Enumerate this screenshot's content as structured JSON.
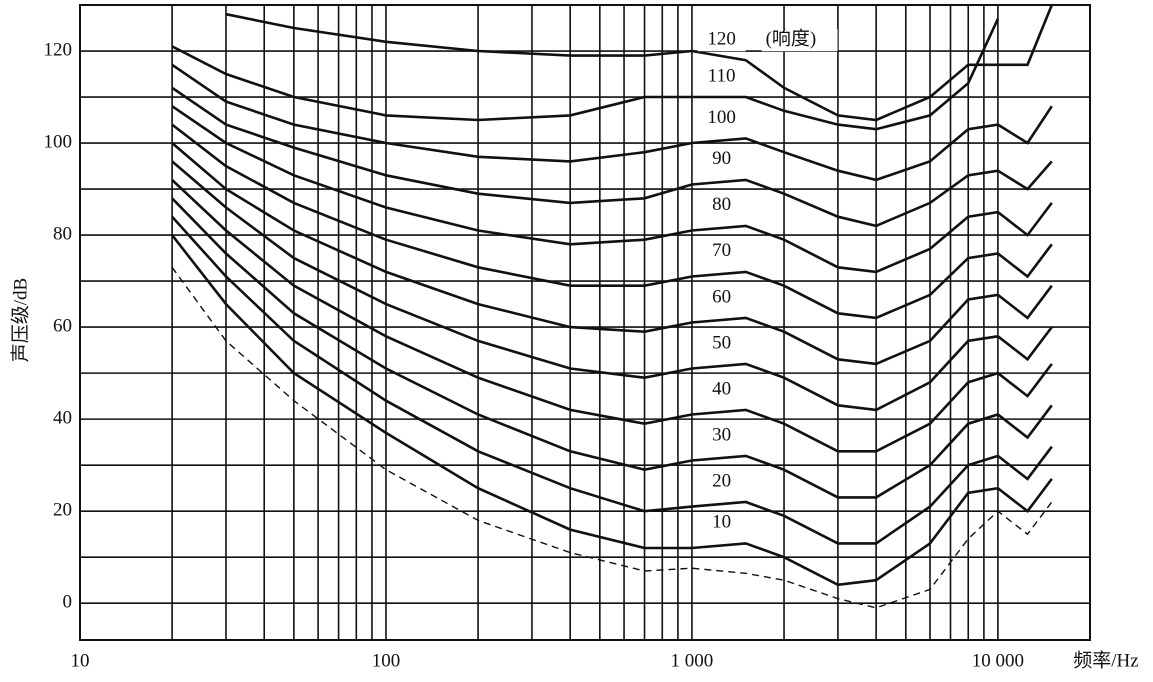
{
  "chart_data": {
    "type": "line",
    "log_x": true,
    "grid": true,
    "ylabel": "声压级/dB",
    "xlabel": "频率/Hz",
    "annotation": "(响度)",
    "x": [
      20,
      30,
      50,
      100,
      200,
      400,
      700,
      1000,
      1500,
      2000,
      3000,
      4000,
      6000,
      8000,
      10000,
      12500,
      15000
    ],
    "series": [
      {
        "color": "#111111",
        "dash": true,
        "values": [
          73,
          57,
          44,
          29,
          18,
          11,
          7,
          7.6,
          6.5,
          5,
          1,
          -1,
          3,
          14,
          20,
          15,
          22
        ]
      },
      {
        "name": "10",
        "color": "#111111",
        "values": [
          80,
          65,
          50,
          37,
          25,
          16,
          12,
          12,
          13,
          10,
          4,
          5,
          13,
          24,
          25,
          20,
          27
        ]
      },
      {
        "name": "20",
        "color": "#111111",
        "values": [
          84,
          71,
          57,
          44,
          33,
          25,
          20,
          21,
          22,
          19,
          13,
          13,
          21,
          30,
          32,
          27,
          34
        ]
      },
      {
        "name": "30",
        "color": "#111111",
        "values": [
          88,
          76,
          63,
          51,
          41,
          33,
          29,
          31,
          32,
          29,
          23,
          23,
          30,
          39,
          41,
          36,
          43
        ]
      },
      {
        "name": "40",
        "color": "#111111",
        "values": [
          92,
          81,
          69,
          58,
          49,
          42,
          39,
          41,
          42,
          39,
          33,
          33,
          39,
          48,
          50,
          45,
          52
        ]
      },
      {
        "name": "50",
        "color": "#111111",
        "values": [
          96,
          86,
          75,
          65,
          57,
          51,
          49,
          51,
          52,
          49,
          43,
          42,
          48,
          57,
          58,
          53,
          60
        ]
      },
      {
        "name": "60",
        "color": "#111111",
        "values": [
          100,
          90,
          81,
          72,
          65,
          60,
          59,
          61,
          62,
          59,
          53,
          52,
          57,
          66,
          67,
          62,
          69
        ]
      },
      {
        "name": "70",
        "color": "#111111",
        "values": [
          104,
          95,
          87,
          79,
          73,
          69,
          69,
          71,
          72,
          69,
          63,
          62,
          67,
          75,
          76,
          71,
          78
        ]
      },
      {
        "name": "80",
        "color": "#111111",
        "values": [
          108,
          100,
          93,
          86,
          81,
          78,
          79,
          81,
          82,
          79,
          73,
          72,
          77,
          84,
          85,
          80,
          87
        ]
      },
      {
        "name": "90",
        "color": "#111111",
        "values": [
          112,
          104,
          99,
          93,
          89,
          87,
          88,
          91,
          92,
          89,
          84,
          82,
          87,
          93,
          94,
          90,
          96
        ]
      },
      {
        "name": "100",
        "color": "#111111",
        "values": [
          117,
          109,
          104,
          100,
          97,
          96,
          98,
          100,
          101,
          98,
          94,
          92,
          96,
          103,
          104,
          100,
          108
        ]
      },
      {
        "name": "110",
        "color": "#111111",
        "values": [
          121,
          115,
          110,
          106,
          105,
          106,
          110,
          110,
          110,
          107,
          104,
          103,
          106,
          113,
          127,
          null,
          null
        ]
      },
      {
        "name": "120",
        "color": "#111111",
        "values": [
          null,
          128,
          125,
          122,
          120,
          119,
          119,
          120,
          118,
          112,
          106,
          105,
          110,
          117,
          117,
          117,
          130
        ]
      }
    ],
    "xlim": [
      10,
      20000
    ],
    "xticks": [
      10,
      100,
      {
        "value": 1000,
        "label": "1 000"
      },
      {
        "value": 10000,
        "label": "10 000"
      }
    ],
    "xgrid_minor": [
      20,
      30,
      40,
      50,
      60,
      70,
      80,
      90,
      200,
      300,
      400,
      500,
      600,
      700,
      800,
      900,
      2000,
      3000,
      4000,
      5000,
      6000,
      7000,
      8000,
      9000
    ],
    "ylim": [
      -8,
      130
    ],
    "yticks": [
      0,
      20,
      40,
      60,
      80,
      100,
      120
    ],
    "ygrid_minor": [
      10,
      30,
      50,
      70,
      90,
      110
    ]
  }
}
